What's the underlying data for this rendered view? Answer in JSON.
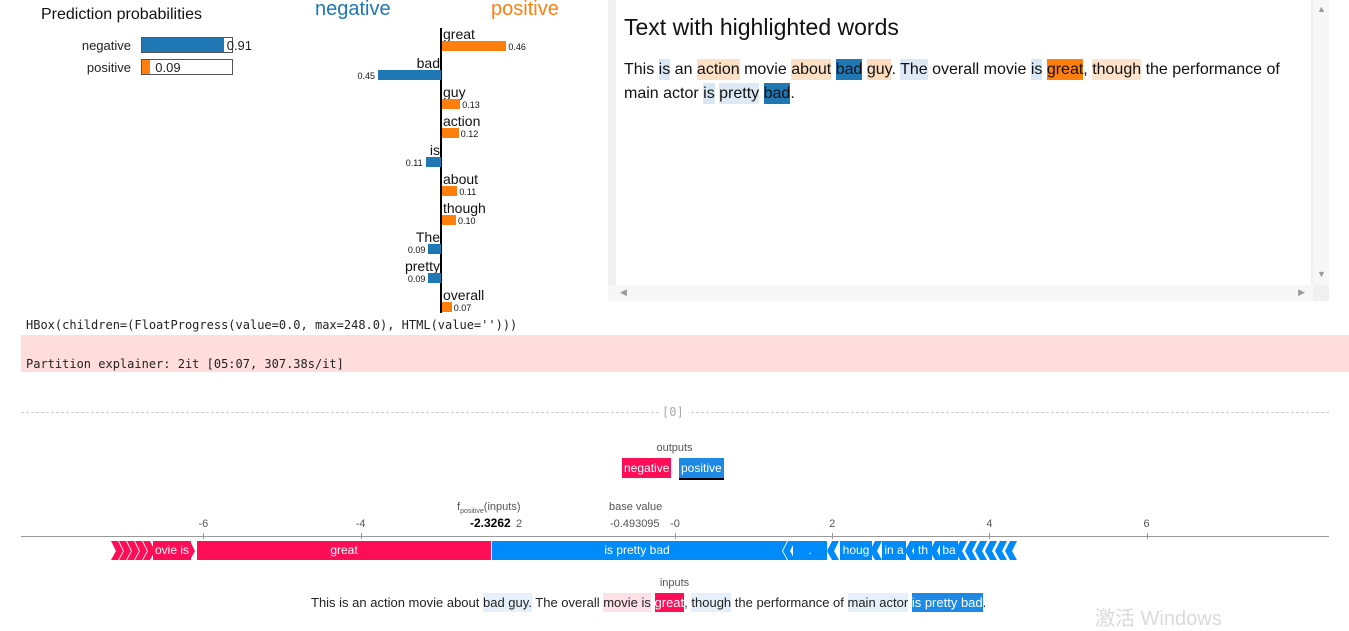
{
  "prediction_probabilities": {
    "title": "Prediction probabilities",
    "rows": [
      {
        "label": "negative",
        "value": "0.91",
        "fraction": 0.91,
        "color": "#1f77b4"
      },
      {
        "label": "positive",
        "value": "0.09",
        "fraction": 0.09,
        "color": "#ff7f0e"
      }
    ]
  },
  "explanation": {
    "negative_label": "negative",
    "positive_label": "positive",
    "neg_color": "#1f77b4",
    "pos_color": "#ff7f0e",
    "features": [
      {
        "word": "great",
        "value": "0.46",
        "weight": 0.46,
        "side": "positive"
      },
      {
        "word": "bad",
        "value": "0.45",
        "weight": 0.45,
        "side": "negative"
      },
      {
        "word": "guy",
        "value": "0.13",
        "weight": 0.13,
        "side": "positive"
      },
      {
        "word": "action",
        "value": "0.12",
        "weight": 0.12,
        "side": "positive"
      },
      {
        "word": "is",
        "value": "0.11",
        "weight": 0.11,
        "side": "negative"
      },
      {
        "word": "about",
        "value": "0.11",
        "weight": 0.11,
        "side": "positive"
      },
      {
        "word": "though",
        "value": "0.10",
        "weight": 0.1,
        "side": "positive"
      },
      {
        "word": "The",
        "value": "0.09",
        "weight": 0.09,
        "side": "negative"
      },
      {
        "word": "pretty",
        "value": "0.09",
        "weight": 0.09,
        "side": "negative"
      },
      {
        "word": "overall",
        "value": "0.07",
        "weight": 0.07,
        "side": "positive"
      }
    ]
  },
  "highlight_panel": {
    "title": "Text with highlighted words",
    "tokens": [
      {
        "t": "This ",
        "bg": ""
      },
      {
        "t": "is",
        "bg": "#d7e7f3"
      },
      {
        "t": " an ",
        "bg": ""
      },
      {
        "t": "action",
        "bg": "#fce0c6"
      },
      {
        "t": " movie ",
        "bg": ""
      },
      {
        "t": "about",
        "bg": "#fce0c6"
      },
      {
        "t": " ",
        "bg": ""
      },
      {
        "t": "bad",
        "bg": "#1f77b4"
      },
      {
        "t": " ",
        "bg": ""
      },
      {
        "t": "guy",
        "bg": "#fcdcbf"
      },
      {
        "t": ". ",
        "bg": ""
      },
      {
        "t": "The",
        "bg": "#dde9f4"
      },
      {
        "t": " overall movie ",
        "bg": ""
      },
      {
        "t": "is",
        "bg": "#d7e7f3"
      },
      {
        "t": " ",
        "bg": ""
      },
      {
        "t": "great",
        "bg": "#ff7f0e"
      },
      {
        "t": ", ",
        "bg": ""
      },
      {
        "t": "though",
        "bg": "#fce2ca"
      },
      {
        "t": " the performance of main actor ",
        "bg": ""
      },
      {
        "t": "is",
        "bg": "#d7e7f3"
      },
      {
        "t": " ",
        "bg": ""
      },
      {
        "t": "pretty",
        "bg": "#dde9f4"
      },
      {
        "t": " ",
        "bg": ""
      },
      {
        "t": "bad",
        "bg": "#1f77b4"
      },
      {
        "t": ".",
        "bg": ""
      }
    ]
  },
  "console": {
    "hbox": "HBox(children=(FloatProgress(value=0.0, max=248.0), HTML(value='')))",
    "stderr": "Partition explainer: 2it [05:07, 307.38s/it]"
  },
  "force_plot": {
    "index_label": "[0]",
    "outputs_label": "outputs",
    "output_buttons": [
      {
        "label": "negative",
        "color": "#ff0d57"
      },
      {
        "label": "positive",
        "color": "#1e88e5"
      }
    ],
    "f_label": "f",
    "f_sub": "positive",
    "f_inputs": "(inputs)",
    "f_value": "-2.3262",
    "f_value_suffix": "2",
    "base_value_label": "base value",
    "base_value_text": "-0.493095",
    "axis_ticks": [
      {
        "label": "-6",
        "v": -6
      },
      {
        "label": "-4",
        "v": -4
      },
      {
        "label": "-0",
        "v": 0
      },
      {
        "label": "2",
        "v": 2
      },
      {
        "label": "4",
        "v": 4
      },
      {
        "label": "6",
        "v": 6
      }
    ],
    "red_color": "#ff0d57",
    "blue_color": "#008bfb",
    "bar_labels": {
      "red_small": "ovie is",
      "red_main": "great",
      "blue_main": "is pretty bad",
      "blue_1": ".",
      "blue_2": "houg",
      "blue_3": "in a",
      "blue_4": "th",
      "blue_5": "ba"
    },
    "inputs_label": "inputs",
    "inputs_tokens": [
      {
        "t": "This is an action movie about ",
        "bg": ""
      },
      {
        "t": "bad guy.",
        "bg": "#e5f0fb"
      },
      {
        "t": " The overall ",
        "bg": ""
      },
      {
        "t": "movie is",
        "bg": "#fde0e8"
      },
      {
        "t": " ",
        "bg": ""
      },
      {
        "t": "great",
        "bg": "#ff0d57"
      },
      {
        "t": ", ",
        "bg": ""
      },
      {
        "t": "though",
        "bg": "#e5f0fb"
      },
      {
        "t": " the performance of ",
        "bg": ""
      },
      {
        "t": "main actor",
        "bg": "#e5f0fb"
      },
      {
        "t": " ",
        "bg": ""
      },
      {
        "t": "is pretty bad",
        "bg": "#1e88e5"
      },
      {
        "t": ".",
        "bg": ""
      }
    ]
  },
  "watermark": "激活 Windows"
}
